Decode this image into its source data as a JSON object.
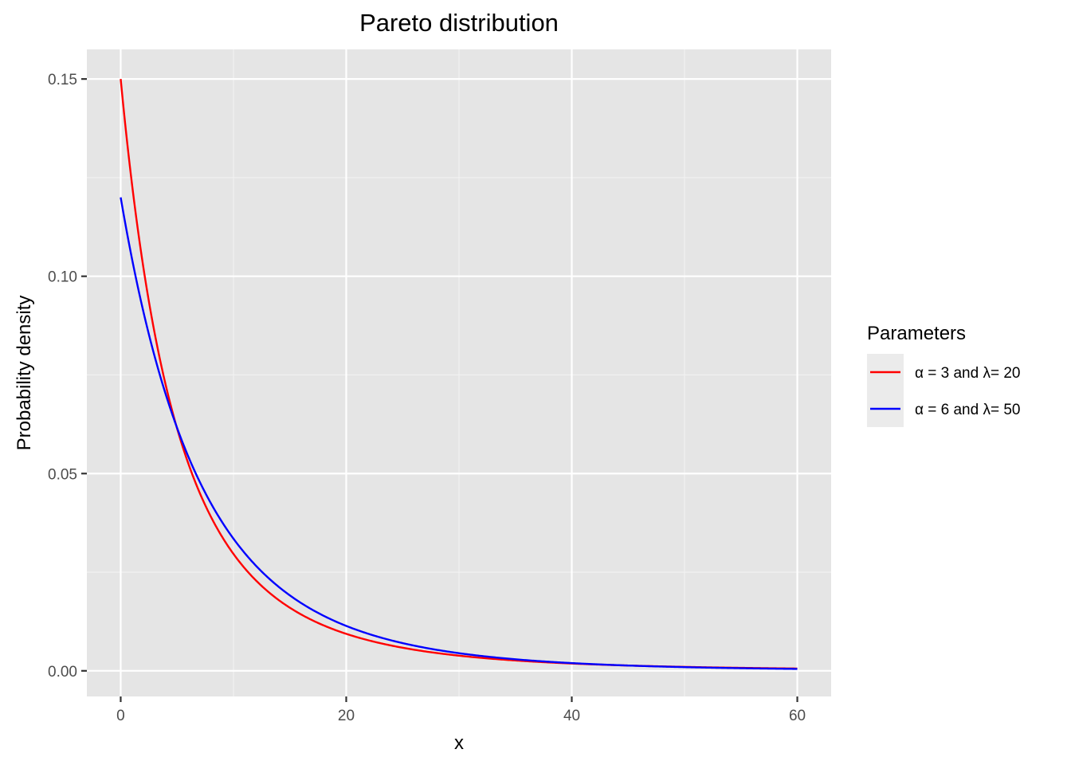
{
  "chart_data": {
    "type": "line",
    "title": "Pareto distribution",
    "xlabel": "x",
    "ylabel": "Probability density",
    "xlim": [
      -3,
      63
    ],
    "ylim": [
      -0.0065,
      0.1575
    ],
    "x_ticks": [
      0,
      20,
      40,
      60
    ],
    "x_tick_labels": [
      "0",
      "20",
      "40",
      "60"
    ],
    "x_minor_ticks": [
      10,
      30,
      50
    ],
    "y_ticks": [
      0.0,
      0.05,
      0.1,
      0.15
    ],
    "y_tick_labels": [
      "0.00",
      "0.05",
      "0.10",
      "0.15"
    ],
    "y_minor_ticks": [
      0.025,
      0.075,
      0.125
    ],
    "grid": true,
    "panel_background": "#e5e5e5",
    "legend": {
      "title": "Parameters",
      "placement": "right"
    },
    "series": [
      {
        "name": "α = 3 and λ= 20",
        "color": "#ff0000",
        "alpha": 3,
        "lambda": 20,
        "x": [
          0,
          1,
          2,
          3,
          4,
          5,
          6,
          7,
          8,
          10,
          12,
          14,
          16,
          18,
          20,
          25,
          30,
          35,
          40,
          45,
          50,
          55,
          60
        ],
        "values": [
          0.15,
          0.1296,
          0.1127,
          0.0986,
          0.0868,
          0.0768,
          0.0683,
          0.061,
          0.0547,
          0.0444,
          0.0366,
          0.0305,
          0.0257,
          0.0219,
          0.0188,
          0.0132,
          0.0096,
          0.0072,
          0.0056,
          0.0044,
          0.0035,
          0.0028,
          0.0023
        ]
      },
      {
        "name": "α = 6 and λ= 50",
        "color": "#0000ff",
        "alpha": 6,
        "lambda": 50,
        "x": [
          0,
          1,
          2,
          3,
          4,
          5,
          6,
          7,
          8,
          10,
          12,
          14,
          16,
          18,
          20,
          25,
          30,
          35,
          40,
          45,
          50,
          55,
          60
        ],
        "values": [
          0.12,
          0.1066,
          0.095,
          0.0849,
          0.0761,
          0.0683,
          0.0615,
          0.0555,
          0.0502,
          0.0413,
          0.0343,
          0.0287,
          0.0242,
          0.0206,
          0.0177,
          0.0122,
          0.0088,
          0.0066,
          0.0051,
          0.004,
          0.0032,
          0.0026,
          0.0022
        ]
      }
    ]
  }
}
